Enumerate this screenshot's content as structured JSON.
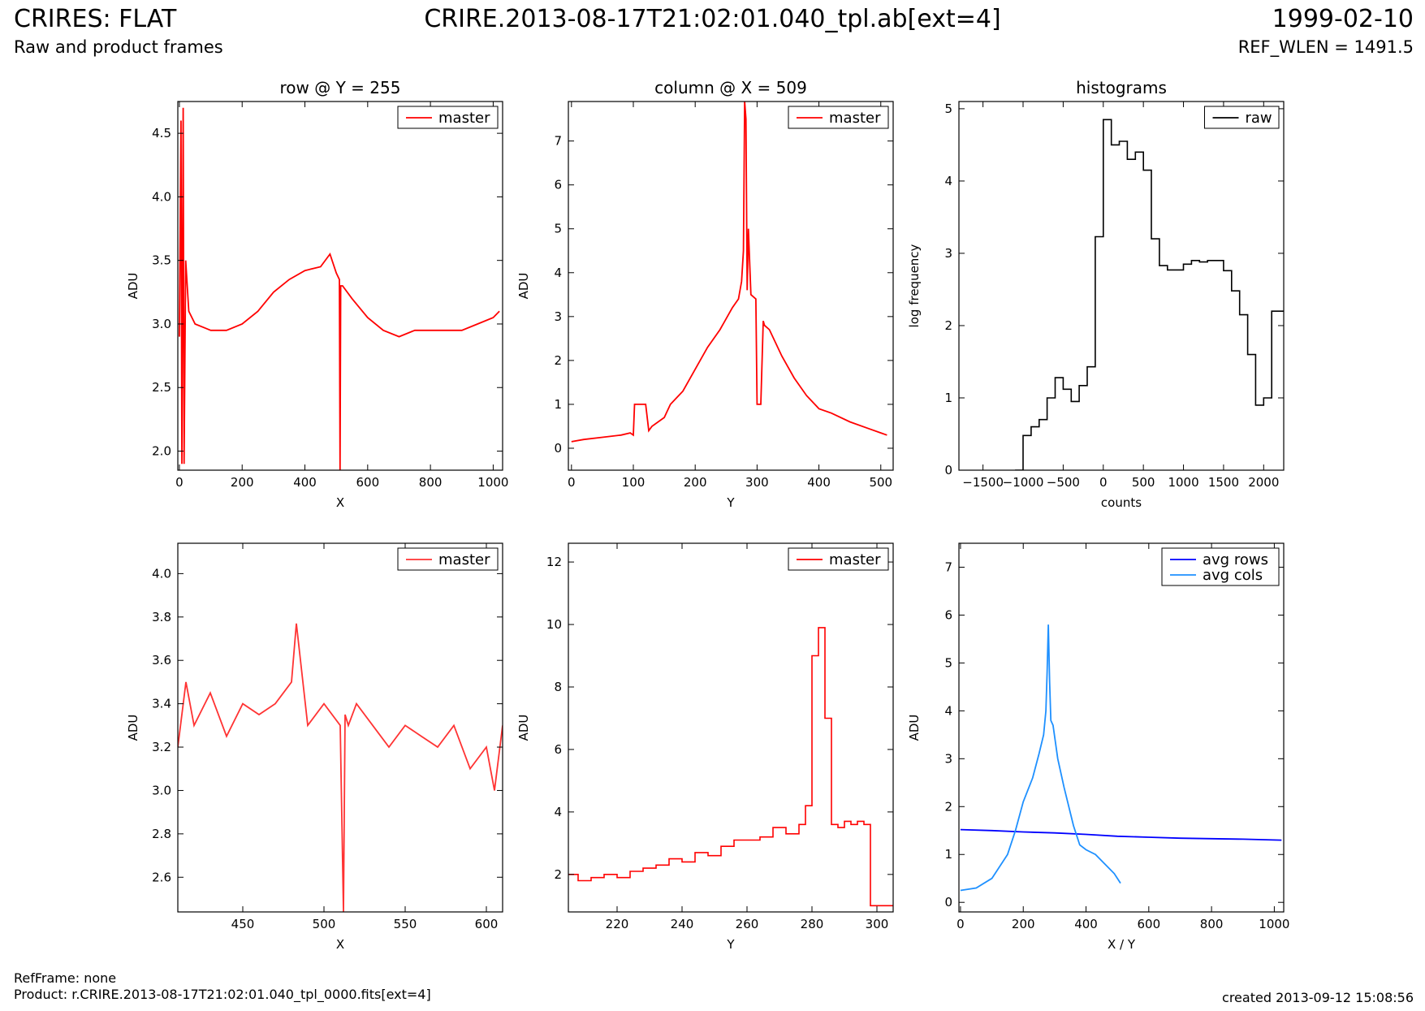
{
  "header": {
    "title": "CRIRES: FLAT",
    "subtitle": "Raw and product frames",
    "file": "CRIRE.2013-08-17T21:02:01.040_tpl.ab[ext=4]",
    "date": "1999-02-10",
    "ref_wlen": "REF_WLEN = 1491.5"
  },
  "footer": {
    "refframe": "RefFrame: none",
    "product": "Product: r.CRIRE.2013-08-17T21:02:01.040_tpl_0000.fits[ext=4]",
    "created": "created 2013-09-12 15:08:56"
  },
  "colors": {
    "red": "#ff0000",
    "light_red": "#ff3333",
    "black": "#000000",
    "blue": "#0000ff",
    "light_blue": "#1e90ff"
  },
  "chart_data": [
    {
      "id": "row",
      "type": "line",
      "title": "row @ Y = 255",
      "xlabel": "X",
      "ylabel": "ADU",
      "xlim": [
        -5,
        1030
      ],
      "ylim": [
        1.85,
        4.75
      ],
      "xticks": [
        0,
        200,
        400,
        600,
        800,
        1000
      ],
      "yticks": [
        2.0,
        2.5,
        3.0,
        3.5,
        4.0,
        4.5
      ],
      "legend": "top-right",
      "series": [
        {
          "name": "master",
          "color": "#ff0000",
          "x": [
            0,
            5,
            8,
            12,
            15,
            20,
            30,
            50,
            100,
            150,
            200,
            250,
            300,
            350,
            400,
            450,
            480,
            500,
            510,
            512,
            514,
            520,
            550,
            600,
            650,
            700,
            750,
            800,
            850,
            900,
            950,
            1000,
            1020
          ],
          "y": [
            2.9,
            4.6,
            1.9,
            4.7,
            1.9,
            3.5,
            3.1,
            3.0,
            2.95,
            2.95,
            3.0,
            3.1,
            3.25,
            3.35,
            3.42,
            3.45,
            3.55,
            3.4,
            3.35,
            1.85,
            3.3,
            3.3,
            3.2,
            3.05,
            2.95,
            2.9,
            2.95,
            2.95,
            2.95,
            2.95,
            3.0,
            3.05,
            3.1
          ]
        }
      ]
    },
    {
      "id": "column",
      "type": "line",
      "title": "column @ X = 509",
      "xlabel": "Y",
      "ylabel": "ADU",
      "xlim": [
        -5,
        520
      ],
      "ylim": [
        -0.5,
        7.9
      ],
      "xticks": [
        0,
        100,
        200,
        300,
        400,
        500
      ],
      "yticks": [
        0,
        1,
        2,
        3,
        4,
        5,
        6,
        7
      ],
      "legend": "top-right",
      "series": [
        {
          "name": "master",
          "color": "#ff0000",
          "x": [
            0,
            20,
            50,
            80,
            95,
            100,
            102,
            120,
            125,
            130,
            150,
            160,
            180,
            200,
            220,
            240,
            260,
            270,
            275,
            278,
            280,
            282,
            284,
            286,
            290,
            298,
            300,
            306,
            310,
            312,
            320,
            340,
            360,
            380,
            400,
            420,
            450,
            480,
            500,
            510
          ],
          "y": [
            0.15,
            0.2,
            0.25,
            0.3,
            0.35,
            0.3,
            1.0,
            1.0,
            0.4,
            0.5,
            0.7,
            1.0,
            1.3,
            1.8,
            2.3,
            2.7,
            3.2,
            3.4,
            3.8,
            4.5,
            7.9,
            7.5,
            3.6,
            5.0,
            3.5,
            3.4,
            1.0,
            1.0,
            2.9,
            2.8,
            2.7,
            2.1,
            1.6,
            1.2,
            0.9,
            0.8,
            0.6,
            0.45,
            0.35,
            0.3
          ]
        }
      ]
    },
    {
      "id": "histograms",
      "type": "line",
      "title": "histograms",
      "xlabel": "counts",
      "ylabel": "log frequency",
      "xlim": [
        -1800,
        2250
      ],
      "ylim": [
        0,
        5.1
      ],
      "xticks": [
        -1500,
        -1000,
        -500,
        0,
        500,
        1000,
        1500,
        2000
      ],
      "yticks": [
        0,
        1,
        2,
        3,
        4,
        5
      ],
      "legend": "top-right",
      "series": [
        {
          "name": "raw",
          "color": "#000000",
          "step": true,
          "x": [
            -1100,
            -1000,
            -900,
            -800,
            -700,
            -600,
            -500,
            -400,
            -300,
            -200,
            -100,
            0,
            100,
            200,
            300,
            400,
            500,
            600,
            700,
            800,
            900,
            1000,
            1100,
            1200,
            1300,
            1400,
            1500,
            1600,
            1700,
            1800,
            1900,
            2000,
            2100,
            2200
          ],
          "y": [
            0.0,
            0.48,
            0.6,
            0.7,
            1.0,
            1.28,
            1.12,
            0.95,
            1.17,
            1.43,
            3.23,
            4.85,
            4.5,
            4.55,
            4.3,
            4.4,
            4.15,
            3.2,
            2.83,
            2.77,
            2.77,
            2.85,
            2.9,
            2.88,
            2.9,
            2.9,
            2.76,
            2.48,
            2.15,
            1.6,
            0.9,
            1.0,
            2.2,
            2.2
          ]
        }
      ]
    },
    {
      "id": "row-zoom",
      "type": "line",
      "title": "",
      "xlabel": "X",
      "ylabel": "ADU",
      "xlim": [
        410,
        610
      ],
      "ylim": [
        2.44,
        4.14
      ],
      "xticks": [
        450,
        500,
        550,
        600
      ],
      "yticks": [
        2.6,
        2.8,
        3.0,
        3.2,
        3.4,
        3.6,
        3.8,
        4.0
      ],
      "legend": "top-right",
      "series": [
        {
          "name": "master",
          "color": "#ff3333",
          "x": [
            410,
            415,
            420,
            430,
            440,
            450,
            460,
            470,
            480,
            483,
            490,
            500,
            510,
            512,
            513,
            515,
            520,
            530,
            540,
            550,
            560,
            570,
            580,
            590,
            600,
            605,
            610
          ],
          "y": [
            3.2,
            3.5,
            3.3,
            3.45,
            3.25,
            3.4,
            3.35,
            3.4,
            3.5,
            3.77,
            3.3,
            3.4,
            3.3,
            2.44,
            3.35,
            3.3,
            3.4,
            3.3,
            3.2,
            3.3,
            3.25,
            3.2,
            3.3,
            3.1,
            3.2,
            3.0,
            3.3
          ]
        }
      ]
    },
    {
      "id": "column-zoom",
      "type": "line",
      "title": "",
      "xlabel": "Y",
      "ylabel": "ADU",
      "xlim": [
        205,
        305
      ],
      "ylim": [
        0.8,
        12.6
      ],
      "xticks": [
        220,
        240,
        260,
        280,
        300
      ],
      "yticks": [
        2,
        4,
        6,
        8,
        10,
        12
      ],
      "legend": "top-right",
      "series": [
        {
          "name": "master",
          "color": "#ff0000",
          "step": true,
          "x": [
            205,
            208,
            212,
            216,
            220,
            224,
            228,
            232,
            236,
            240,
            244,
            248,
            252,
            256,
            260,
            264,
            268,
            272,
            276,
            278,
            280,
            282,
            283,
            284,
            286,
            288,
            290,
            292,
            294,
            296,
            298,
            300,
            305
          ],
          "y": [
            2.0,
            1.8,
            1.9,
            2.0,
            1.9,
            2.1,
            2.2,
            2.3,
            2.5,
            2.4,
            2.7,
            2.6,
            2.9,
            3.1,
            3.1,
            3.2,
            3.5,
            3.3,
            3.6,
            4.2,
            9.0,
            9.9,
            9.9,
            7.0,
            3.6,
            3.5,
            3.7,
            3.6,
            3.7,
            3.6,
            1.0,
            1.0,
            1.0
          ]
        }
      ]
    },
    {
      "id": "averages",
      "type": "line",
      "title": "",
      "xlabel": "X / Y",
      "ylabel": "ADU",
      "xlim": [
        -5,
        1030
      ],
      "ylim": [
        -0.2,
        7.5
      ],
      "xticks": [
        0,
        200,
        400,
        600,
        800,
        1000
      ],
      "yticks": [
        0,
        1,
        2,
        3,
        4,
        5,
        6,
        7
      ],
      "legend": "top-right",
      "series": [
        {
          "name": "avg rows",
          "color": "#0000ff",
          "x": [
            0,
            100,
            200,
            300,
            400,
            500,
            600,
            700,
            800,
            900,
            1023
          ],
          "y": [
            1.52,
            1.5,
            1.47,
            1.45,
            1.42,
            1.38,
            1.36,
            1.34,
            1.33,
            1.32,
            1.3
          ]
        },
        {
          "name": "avg cols",
          "color": "#1e90ff",
          "x": [
            0,
            50,
            100,
            150,
            175,
            200,
            230,
            250,
            265,
            272,
            276,
            280,
            284,
            288,
            295,
            310,
            330,
            360,
            380,
            400,
            430,
            460,
            490,
            510
          ],
          "y": [
            0.25,
            0.3,
            0.5,
            1.0,
            1.5,
            2.1,
            2.6,
            3.1,
            3.5,
            4.0,
            4.8,
            5.8,
            4.6,
            3.8,
            3.7,
            3.0,
            2.4,
            1.6,
            1.2,
            1.1,
            1.0,
            0.8,
            0.6,
            0.4
          ]
        }
      ]
    }
  ]
}
